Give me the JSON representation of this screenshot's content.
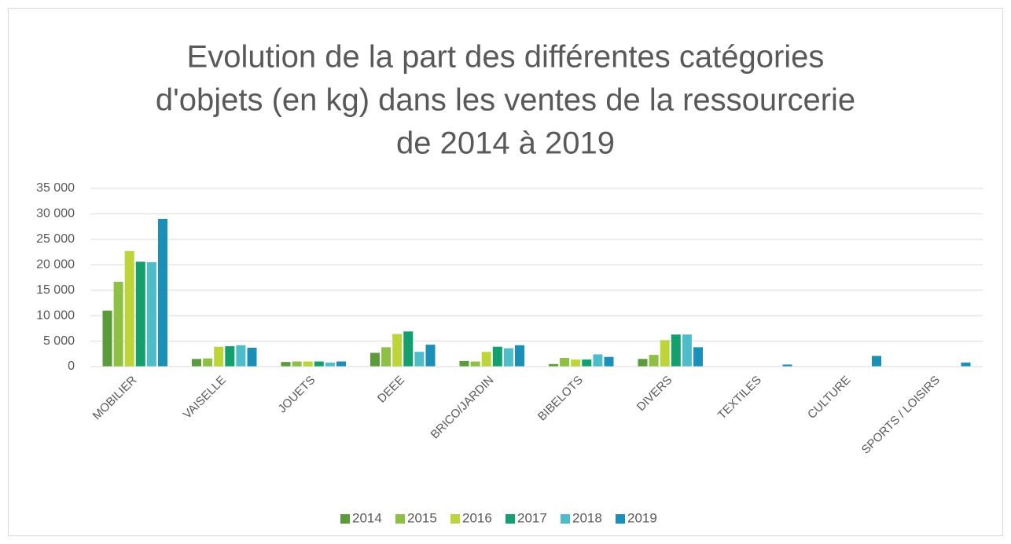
{
  "chart_data": {
    "type": "bar",
    "title": [
      "Evolution de la part des différentes catégories",
      "d'objets (en kg) dans les ventes de la ressourcerie",
      "de 2014 à 2019"
    ],
    "categories": [
      "MOBILIER",
      "VAISELLE",
      "JOUETS",
      "DEEE",
      "BRICO/JARDIN",
      "BIBELOTS",
      "DIVERS",
      "TEXTILES",
      "CULTURE",
      "SPORTS / LOISIRS"
    ],
    "series": [
      {
        "name": "2014",
        "color": "#5b9b3c",
        "values": [
          11000,
          1500,
          900,
          2700,
          1100,
          500,
          1500,
          null,
          null,
          null
        ]
      },
      {
        "name": "2015",
        "color": "#8dc044",
        "values": [
          16650,
          1600,
          1000,
          3800,
          1000,
          1700,
          2300,
          null,
          null,
          null
        ]
      },
      {
        "name": "2016",
        "color": "#bdd43b",
        "values": [
          22700,
          3900,
          1000,
          6400,
          2900,
          1400,
          5200,
          null,
          null,
          null
        ]
      },
      {
        "name": "2017",
        "color": "#13a06e",
        "values": [
          20600,
          4000,
          1000,
          6900,
          3900,
          1400,
          6300,
          null,
          null,
          null
        ]
      },
      {
        "name": "2018",
        "color": "#4fbdc9",
        "values": [
          20500,
          4200,
          800,
          2900,
          3600,
          2400,
          6300,
          null,
          null,
          null
        ]
      },
      {
        "name": "2019",
        "color": "#1a8fb8",
        "values": [
          29000,
          3700,
          1000,
          4300,
          4200,
          1900,
          3800,
          400,
          2100,
          800
        ]
      }
    ],
    "ylim": [
      0,
      35000
    ],
    "yticks": [
      0,
      {
        "value": 5000,
        "label": "5 000"
      },
      {
        "value": 10000,
        "label": "10 000"
      },
      {
        "value": 15000,
        "label": "15 000"
      },
      {
        "value": 20000,
        "label": "20 000"
      },
      {
        "value": 25000,
        "label": "25 000"
      },
      {
        "value": 30000,
        "label": "30 000"
      },
      {
        "value": 35000,
        "label": "35 000"
      }
    ],
    "grid": true,
    "legend": "bottom"
  }
}
